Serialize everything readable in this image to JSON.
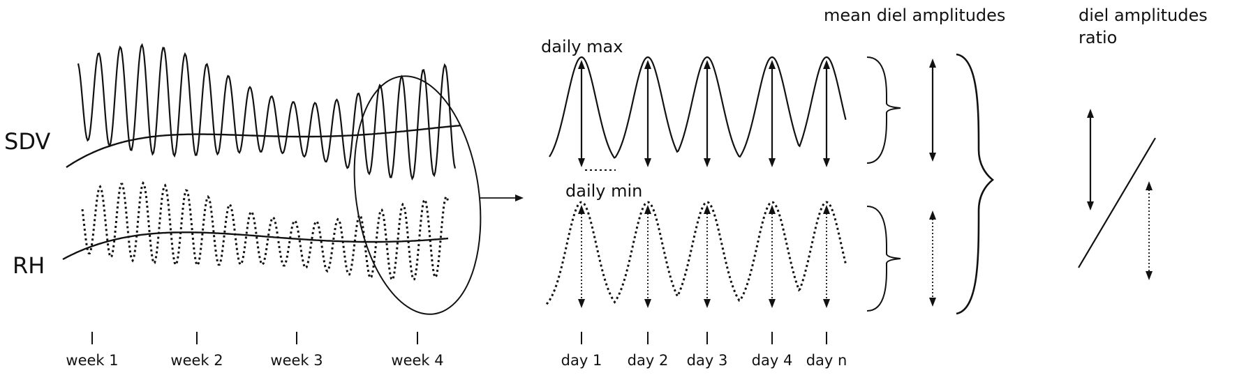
{
  "labels": {
    "sdv": "SDV",
    "rh": "RH",
    "daily_max": "daily max",
    "daily_min": "daily min",
    "mean_diel_amplitudes": "mean diel amplitudes",
    "diel_ratio_line1": "diel amplitudes",
    "diel_ratio_line2": "ratio"
  },
  "weeks": [
    "week 1",
    "week 2",
    "week 3",
    "week 4"
  ],
  "days": [
    "day 1",
    "day 2",
    "day 3",
    "day 4",
    "day n"
  ],
  "colors": {
    "ink": "#111111",
    "background": "#ffffff"
  }
}
